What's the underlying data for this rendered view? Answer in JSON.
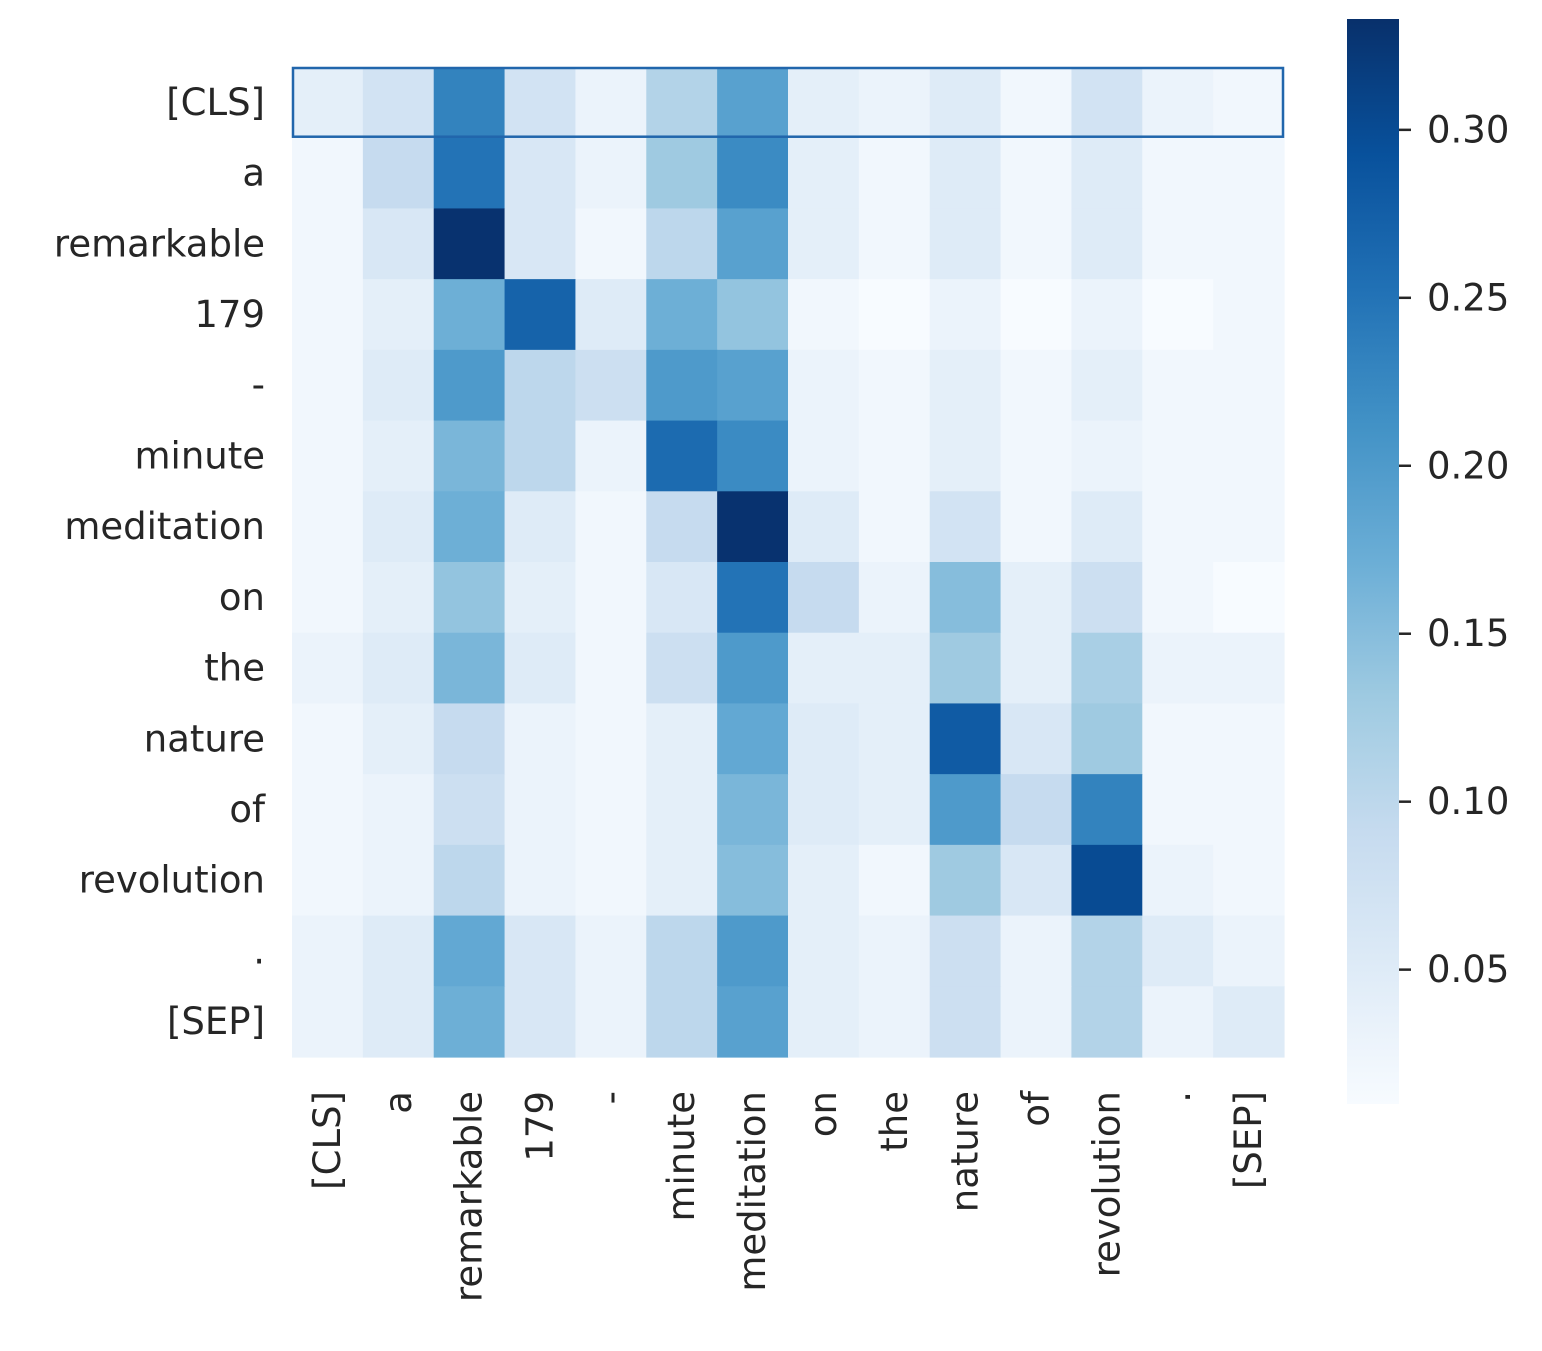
{
  "chart_data": {
    "type": "heatmap",
    "title": "",
    "xlabel": "",
    "ylabel": "",
    "x_categories": [
      "[CLS]",
      "a",
      "remarkable",
      "179",
      "-",
      "minute",
      "meditation",
      "on",
      "the",
      "nature",
      "of",
      "revolution",
      ".",
      "[SEP]"
    ],
    "y_categories": [
      "[CLS]",
      "a",
      "remarkable",
      "179",
      "-",
      "minute",
      "meditation",
      "on",
      "the",
      "nature",
      "of",
      "revolution",
      ".",
      "[SEP]"
    ],
    "values": [
      [
        0.04,
        0.07,
        0.23,
        0.07,
        0.03,
        0.11,
        0.19,
        0.04,
        0.03,
        0.05,
        0.02,
        0.07,
        0.03,
        0.02
      ],
      [
        0.02,
        0.09,
        0.25,
        0.06,
        0.03,
        0.13,
        0.22,
        0.04,
        0.02,
        0.05,
        0.02,
        0.05,
        0.02,
        0.02
      ],
      [
        0.02,
        0.06,
        0.33,
        0.06,
        0.02,
        0.1,
        0.19,
        0.04,
        0.02,
        0.05,
        0.02,
        0.05,
        0.02,
        0.02
      ],
      [
        0.02,
        0.04,
        0.17,
        0.27,
        0.05,
        0.17,
        0.14,
        0.02,
        0.01,
        0.03,
        0.01,
        0.03,
        0.01,
        0.02
      ],
      [
        0.02,
        0.05,
        0.2,
        0.1,
        0.08,
        0.2,
        0.19,
        0.03,
        0.02,
        0.04,
        0.02,
        0.04,
        0.02,
        0.02
      ],
      [
        0.02,
        0.04,
        0.16,
        0.1,
        0.03,
        0.26,
        0.22,
        0.03,
        0.02,
        0.04,
        0.02,
        0.03,
        0.02,
        0.02
      ],
      [
        0.02,
        0.05,
        0.17,
        0.05,
        0.02,
        0.09,
        0.33,
        0.05,
        0.02,
        0.07,
        0.02,
        0.05,
        0.02,
        0.02
      ],
      [
        0.02,
        0.04,
        0.14,
        0.04,
        0.02,
        0.06,
        0.25,
        0.09,
        0.03,
        0.15,
        0.04,
        0.08,
        0.02,
        0.01
      ],
      [
        0.03,
        0.05,
        0.16,
        0.05,
        0.02,
        0.08,
        0.2,
        0.04,
        0.04,
        0.13,
        0.04,
        0.12,
        0.03,
        0.03
      ],
      [
        0.02,
        0.04,
        0.09,
        0.03,
        0.02,
        0.04,
        0.18,
        0.05,
        0.04,
        0.28,
        0.06,
        0.13,
        0.02,
        0.02
      ],
      [
        0.02,
        0.03,
        0.08,
        0.03,
        0.02,
        0.04,
        0.16,
        0.05,
        0.04,
        0.2,
        0.09,
        0.23,
        0.02,
        0.02
      ],
      [
        0.02,
        0.03,
        0.1,
        0.03,
        0.02,
        0.04,
        0.15,
        0.04,
        0.02,
        0.13,
        0.06,
        0.3,
        0.03,
        0.02
      ],
      [
        0.03,
        0.05,
        0.18,
        0.06,
        0.03,
        0.1,
        0.2,
        0.04,
        0.03,
        0.08,
        0.03,
        0.11,
        0.05,
        0.03
      ],
      [
        0.03,
        0.05,
        0.17,
        0.06,
        0.03,
        0.1,
        0.19,
        0.04,
        0.03,
        0.08,
        0.03,
        0.11,
        0.03,
        0.05
      ]
    ],
    "vmin": 0.01,
    "vmax": 0.333,
    "colormap": "Blues",
    "colorbar": {
      "ticks": [
        0.05,
        0.1,
        0.15,
        0.2,
        0.25,
        0.3
      ],
      "tick_labels": [
        "0.05",
        "0.10",
        "0.15",
        "0.20",
        "0.25",
        "0.30"
      ],
      "placement": "right"
    },
    "highlighted_row": 0,
    "highlight_color": "#2166ac",
    "grid": false
  }
}
